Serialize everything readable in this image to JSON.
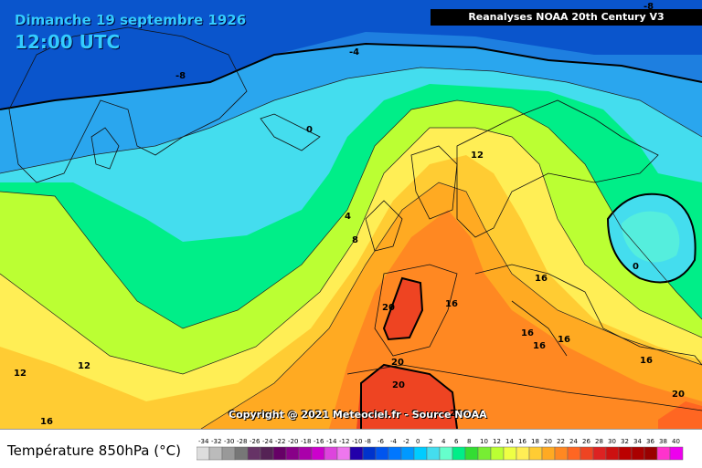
{
  "header": {
    "date": "Dimanche 19 septembre 1926",
    "time": "12:00 UTC",
    "source_banner": "Reanalyses NOAA 20th Century V3"
  },
  "footer": {
    "copyright": "Copyright @ 2021 Meteociel.fr - Source NOAA",
    "legend_title": "Température 850hPa (°C)"
  },
  "isotherm_labels": [
    "-8",
    "-4",
    "-8",
    "0",
    "4",
    "8",
    "12",
    "12",
    "12",
    "16",
    "16",
    "16",
    "16",
    "16",
    "16",
    "16",
    "20",
    "20",
    "20",
    "20",
    "0"
  ],
  "scale": {
    "ticks": [
      "-34",
      "-32",
      "-30",
      "-28",
      "-26",
      "-24",
      "-22",
      "-20",
      "-18",
      "-16",
      "-14",
      "-12",
      "-10",
      "-8",
      "-6",
      "-4",
      "-2",
      "0",
      "2",
      "4",
      "6",
      "8",
      "10",
      "12",
      "14",
      "16",
      "18",
      "20",
      "22",
      "24",
      "26",
      "28",
      "30",
      "32",
      "34",
      "36",
      "38",
      "40"
    ],
    "colors": [
      "#dddddd",
      "#bbbbbb",
      "#999999",
      "#777777",
      "#663366",
      "#552255",
      "#660066",
      "#880088",
      "#aa00aa",
      "#cc00cc",
      "#dd44dd",
      "#ee77ee",
      "#2200aa",
      "#0033cc",
      "#0055ee",
      "#0077ff",
      "#0099ff",
      "#00ccff",
      "#44ddee",
      "#66ffcc",
      "#00ee88",
      "#33dd33",
      "#77ee33",
      "#bbff33",
      "#eeff44",
      "#ffee55",
      "#ffcc33",
      "#ffaa22",
      "#ff8822",
      "#ff6622",
      "#ee4422",
      "#dd2222",
      "#cc1111",
      "#bb0000",
      "#aa0000",
      "#990000",
      "#ff33cc",
      "#ee00ee"
    ]
  }
}
